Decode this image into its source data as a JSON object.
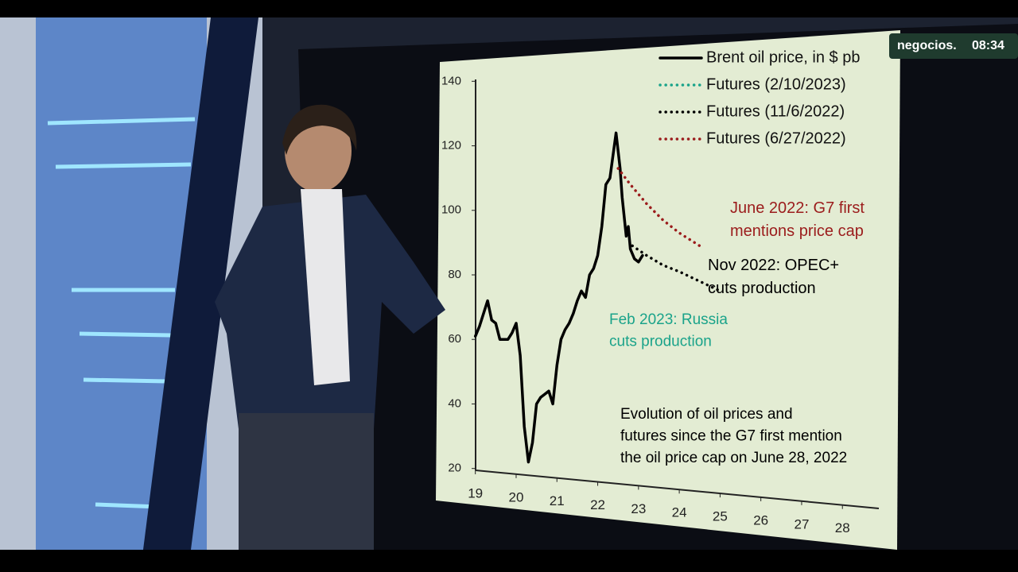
{
  "broadcast": {
    "channel": "negocios.",
    "time": "08:34"
  },
  "chart_data": {
    "type": "line",
    "xlim": [
      18.85,
      28.6
    ],
    "ylim": [
      15,
      145
    ],
    "xticks": [
      19,
      20,
      21,
      22,
      23,
      24,
      25,
      26,
      27,
      28
    ],
    "yticks": [
      20,
      40,
      60,
      80,
      100,
      120,
      140
    ],
    "grid": false,
    "legend": "top-right",
    "series": [
      {
        "name": "Brent oil price, in $ pb",
        "color": "#000000",
        "style": "solid",
        "x": [
          19.0,
          19.1,
          19.3,
          19.4,
          19.5,
          19.6,
          19.8,
          19.9,
          20.0,
          20.1,
          20.2,
          20.3,
          20.4,
          20.5,
          20.6,
          20.7,
          20.8,
          20.9,
          21.0,
          21.1,
          21.2,
          21.3,
          21.4,
          21.5,
          21.6,
          21.7,
          21.8,
          21.9,
          22.0,
          22.1,
          22.2,
          22.3,
          22.45,
          22.55,
          22.6,
          22.7,
          22.75,
          22.8,
          22.9,
          23.0,
          23.1
        ],
        "values": [
          61,
          64,
          72,
          66,
          65,
          60,
          60,
          62,
          65,
          55,
          33,
          22,
          28,
          40,
          42,
          43,
          44,
          40,
          52,
          60,
          63,
          65,
          68,
          72,
          75,
          73,
          80,
          82,
          86,
          95,
          108,
          110,
          124,
          113,
          104,
          92,
          95,
          88,
          85,
          84,
          86
        ]
      },
      {
        "name": "Futures (2/10/2023)",
        "color": "#1aa38a",
        "style": "dotted",
        "x": [],
        "values": []
      },
      {
        "name": "Futures (11/6/2022)",
        "color": "#000000",
        "style": "dotted",
        "x": [
          22.85,
          23.2,
          23.6,
          24.0,
          24.5,
          25.0
        ],
        "values": [
          89,
          86,
          83,
          81,
          78,
          75
        ]
      },
      {
        "name": "Futures (6/27/2022)",
        "color": "#9b1c1c",
        "style": "dotted",
        "x": [
          22.5,
          22.8,
          23.2,
          23.6,
          24.0,
          24.5
        ],
        "values": [
          113,
          108,
          102,
          97,
          93,
          89
        ]
      }
    ],
    "annotations": [
      {
        "text": "June 2022:  G7 first mentions price cap",
        "color": "#9b1c1c"
      },
      {
        "text": "Nov 2022:  OPEC+ cuts production",
        "color": "#000000"
      },
      {
        "text": "Feb 2023:  Russia cuts production",
        "color": "#1aa38a"
      },
      {
        "text": "Evolution of oil prices and futures since the G7 first mention the oil price cap on June 28, 2022",
        "color": "#000000"
      }
    ]
  }
}
